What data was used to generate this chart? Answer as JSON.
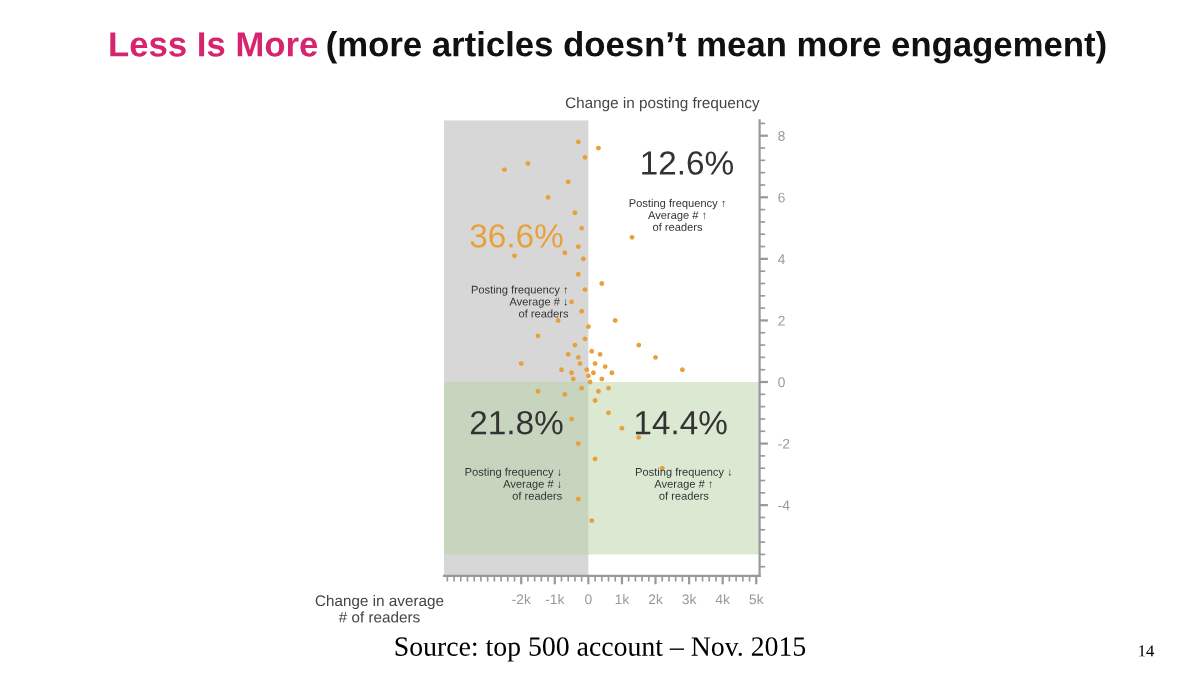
{
  "chart_data": {
    "type": "scatter",
    "title": "Less Is More",
    "subtitle": "(more articles doesn’t mean more engagement)",
    "xlabel": "Change in average\n# of readers",
    "ylabel": "Change in posting frequency",
    "x": [
      -500,
      -300,
      0,
      200,
      400,
      -200,
      100,
      -600,
      500,
      300,
      -100,
      0,
      -400,
      700,
      -800,
      200,
      -200,
      -500,
      -100,
      -300,
      -700,
      -200,
      -400,
      -600,
      -100,
      -1800,
      -2500,
      -1200,
      -300,
      -2200,
      -300,
      300,
      1300,
      800,
      1500,
      2000,
      2800,
      1000,
      600,
      -500,
      -300,
      200,
      1500,
      2200,
      -300,
      100,
      -1500,
      -2000,
      -1500,
      -900,
      400,
      -150,
      50,
      -50,
      150,
      -250,
      350,
      -450,
      600,
      -700
    ],
    "series": [
      {
        "color": "#e8a13a",
        "values": [
          0.3,
          0.8,
          0.2,
          0.6,
          0.1,
          -0.2,
          1.0,
          0.9,
          0.5,
          -0.3,
          1.4,
          1.8,
          1.2,
          0.3,
          0.4,
          -0.6,
          2.3,
          2.6,
          3.0,
          3.5,
          4.2,
          5.0,
          5.5,
          6.5,
          7.3,
          7.1,
          6.9,
          6.0,
          4.4,
          4.1,
          7.8,
          7.6,
          4.7,
          2.0,
          1.2,
          0.8,
          0.4,
          -1.5,
          -1.0,
          -1.2,
          -2.0,
          -2.5,
          -1.8,
          -2.8,
          -3.8,
          -4.5,
          -0.3,
          0.6,
          1.5,
          2.0,
          3.2,
          4.0,
          0.0,
          0.4,
          0.3,
          0.6,
          0.9,
          0.1,
          -0.2,
          -0.4
        ]
      }
    ],
    "marker": "circle",
    "xlim": [
      -4300,
      5100
    ],
    "xticks": [
      {
        "value": -2000,
        "label": "-2k"
      },
      {
        "value": -1000,
        "label": "-1k"
      },
      0,
      {
        "value": 1000,
        "label": "1k"
      },
      {
        "value": 2000,
        "label": "2k"
      },
      {
        "value": 3000,
        "label": "3k"
      },
      {
        "value": 4000,
        "label": "4k"
      },
      {
        "value": 5000,
        "label": "5k"
      }
    ],
    "ylim": [
      -6.3,
      8.5
    ],
    "yticks": [
      -4,
      -2,
      0,
      2,
      4,
      6,
      8
    ],
    "bands": [
      {
        "axis": "x",
        "from": -4300,
        "to": 0,
        "color": "#bdbdbd"
      },
      {
        "axis": "y",
        "from": -5.6,
        "to": 0,
        "color": "#b9d3a6"
      }
    ],
    "grid": false,
    "legend": false,
    "annotations": [
      "36.6%",
      "Posting frequency ↑\nAverage # ↓\nof readers",
      "12.6%",
      "Posting frequency ↑\nAverage # ↑\nof readers",
      "21.8%",
      "Posting frequency ↓\nAverage # ↓\nof readers",
      "14.4%",
      "Posting frequency ↓\nAverage # ↑\nof readers",
      "Source: top 500 account – Nov. 2015",
      "14"
    ]
  }
}
